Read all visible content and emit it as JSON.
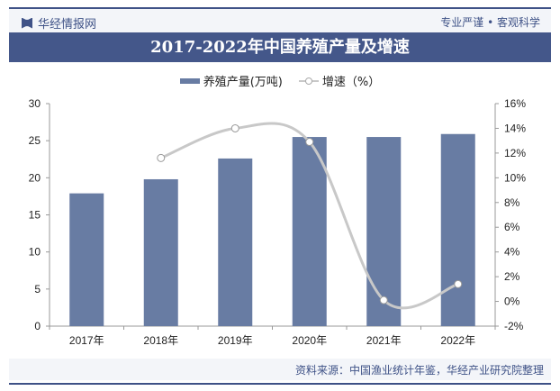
{
  "header": {
    "brand": "华经情报网",
    "slogan": "专业严谨 • 客观科学"
  },
  "footer": {
    "source": "资料来源：中国渔业统计年鉴，华经产业研究院整理"
  },
  "chart_data": {
    "type": "bar+line",
    "title": "2017-2022年中国养殖产量及增速",
    "categories": [
      "2017年",
      "2018年",
      "2019年",
      "2020年",
      "2021年",
      "2022年"
    ],
    "series": [
      {
        "name": "养殖产量(万吨)",
        "type": "bar",
        "axis": "left",
        "values": [
          17.9,
          19.8,
          22.6,
          25.5,
          25.5,
          25.9
        ]
      },
      {
        "name": "增速（%）",
        "type": "line",
        "axis": "right",
        "values": [
          null,
          11.6,
          14.0,
          12.9,
          0.1,
          1.4
        ]
      }
    ],
    "y_left": {
      "min": 0,
      "max": 30,
      "ticks": [
        "0",
        "5",
        "10",
        "15",
        "20",
        "25",
        "30"
      ]
    },
    "y_right": {
      "min": -2,
      "max": 16,
      "ticks": [
        "-2%",
        "0%",
        "2%",
        "4%",
        "6%",
        "8%",
        "10%",
        "12%",
        "14%",
        "16%"
      ]
    },
    "grid": false,
    "legend": "top",
    "colors": {
      "bar": "#687ca3",
      "line": "#c8c8c8"
    }
  }
}
